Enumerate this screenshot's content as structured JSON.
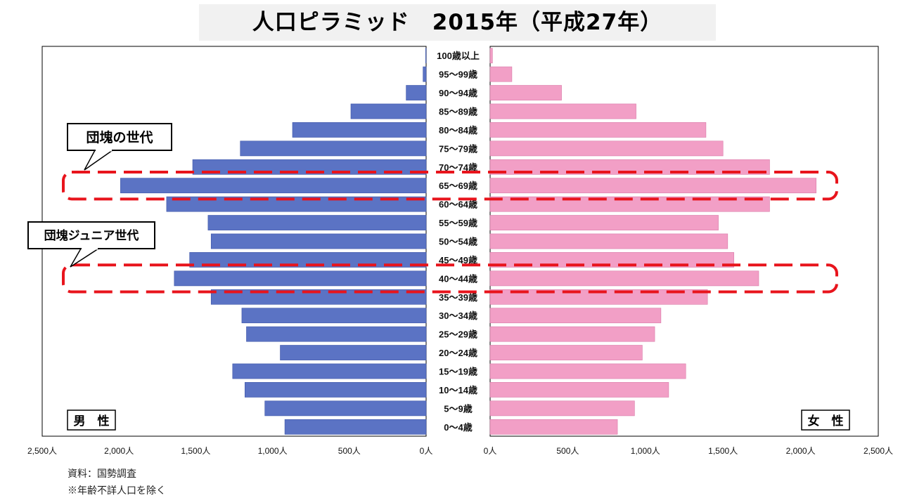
{
  "title": "人口ピラミッド　2015年（平成27年）",
  "chart_data": {
    "type": "bar",
    "orientation": "horizontal",
    "layout": "population-pyramid",
    "categories": [
      "0～4歳",
      "5～9歳",
      "10～14歳",
      "15～19歳",
      "20～24歳",
      "25～29歳",
      "30～34歳",
      "35～39歳",
      "40～44歳",
      "45～49歳",
      "50～54歳",
      "55～59歳",
      "60～64歳",
      "65～69歳",
      "70～74歳",
      "75～79歳",
      "80～84歳",
      "85～89歳",
      "90～94歳",
      "95～99歳",
      "100歳以上"
    ],
    "series": [
      {
        "name": "男　性",
        "side": "left",
        "color": "#5b73c4",
        "values": [
          920,
          1050,
          1180,
          1260,
          950,
          1170,
          1200,
          1400,
          1640,
          1540,
          1400,
          1420,
          1690,
          1990,
          1520,
          1210,
          870,
          490,
          130,
          20,
          3
        ]
      },
      {
        "name": "女　性",
        "side": "right",
        "color": "#f29fc6",
        "values": [
          820,
          930,
          1150,
          1260,
          980,
          1060,
          1100,
          1400,
          1730,
          1570,
          1530,
          1470,
          1800,
          2100,
          1800,
          1500,
          1390,
          940,
          460,
          140,
          15
        ]
      }
    ],
    "xlim": [
      0,
      2500
    ],
    "x_ticks": [
      {
        "value": 2500,
        "label": "2,500人"
      },
      {
        "value": 2000,
        "label": "2,000人"
      },
      {
        "value": 1500,
        "label": "1,500人"
      },
      {
        "value": 1000,
        "label": "1,000人"
      },
      {
        "value": 500,
        "label": "500人"
      },
      {
        "value": 0,
        "label": "0人"
      }
    ],
    "x_ticks_right": [
      {
        "value": 0,
        "label": "0人"
      },
      {
        "value": 500,
        "label": "500人"
      },
      {
        "value": 1000,
        "label": "1,000人"
      },
      {
        "value": 1500,
        "label": "1,500人"
      },
      {
        "value": 2000,
        "label": "2,000人"
      },
      {
        "value": 2500,
        "label": "2,500人"
      }
    ],
    "grid": false,
    "callouts": [
      {
        "label": "団塊の世代",
        "category": "65～69歳",
        "color": "#e8141c"
      },
      {
        "label": "団塊ジュニア世代",
        "category": "40～44歳",
        "color": "#e8141c"
      }
    ]
  },
  "notes": [
    "資料：国勢調査",
    "※年齢不詳人口を除く"
  ]
}
